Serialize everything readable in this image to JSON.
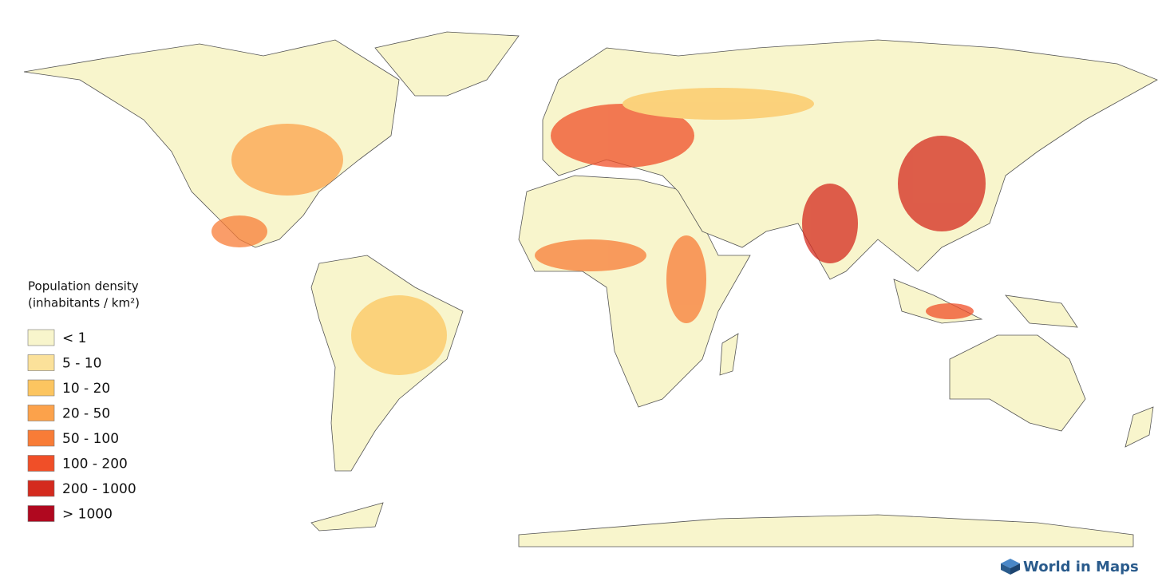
{
  "legend": {
    "title": [
      "Population density",
      "(inhabitants / km²)"
    ],
    "items": [
      {
        "label": "< 1",
        "color": "#f8f5cc"
      },
      {
        "label": "5 - 10",
        "color": "#fbe19a"
      },
      {
        "label": "10 - 20",
        "color": "#fcc560"
      },
      {
        "label": "20 - 50",
        "color": "#fca24b"
      },
      {
        "label": "50 - 100",
        "color": "#f87c37"
      },
      {
        "label": "100 - 200",
        "color": "#f04f28"
      },
      {
        "label": "200 - 1000",
        "color": "#d42a1e"
      },
      {
        "label": "> 1000",
        "color": "#b0081f"
      }
    ]
  },
  "brand": "World in Maps"
}
